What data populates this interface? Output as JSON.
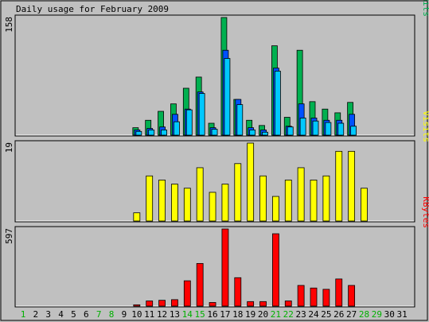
{
  "title": "Daily usage for February 2009",
  "colors": {
    "background": "#c0c0c0",
    "hits": "#00b050",
    "files": "#0050ff",
    "pages": "#00c8ff",
    "visits": "#ffff00",
    "kbytes": "#ff0000",
    "weekend_label": "#00b000",
    "weekday_label": "#000000"
  },
  "chart_data": [
    {
      "type": "bar",
      "name": "pages-files-hits",
      "ylabel_parts": [
        "Pages",
        "/",
        "Files",
        "/",
        "Hits"
      ],
      "ymax_label": "158",
      "ylim": [
        0,
        158
      ],
      "x": [
        1,
        2,
        3,
        4,
        5,
        6,
        7,
        8,
        9,
        10,
        11,
        12,
        13,
        14,
        15,
        16,
        17,
        18,
        19,
        20,
        21,
        22,
        23,
        24,
        25,
        26,
        27,
        28,
        29,
        30,
        31
      ],
      "series": [
        {
          "name": "Hits",
          "values": [
            0,
            0,
            0,
            0,
            0,
            0,
            0,
            0,
            0,
            10,
            20,
            32,
            42,
            63,
            78,
            16,
            158,
            48,
            20,
            13,
            120,
            24,
            114,
            45,
            35,
            30,
            44,
            0,
            0,
            0,
            0
          ]
        },
        {
          "name": "Files",
          "values": [
            0,
            0,
            0,
            0,
            0,
            0,
            0,
            0,
            0,
            7,
            9,
            11,
            28,
            35,
            58,
            10,
            114,
            48,
            10,
            7,
            90,
            12,
            42,
            23,
            20,
            20,
            28,
            0,
            0,
            0,
            0
          ]
        },
        {
          "name": "Pages",
          "values": [
            0,
            0,
            0,
            0,
            0,
            0,
            0,
            0,
            0,
            5,
            7,
            7,
            18,
            34,
            56,
            8,
            103,
            41,
            7,
            4,
            86,
            11,
            23,
            19,
            17,
            16,
            12,
            0,
            0,
            0,
            0
          ]
        }
      ]
    },
    {
      "type": "bar",
      "name": "visits",
      "ylabel": "Visits",
      "ymax_label": "19",
      "ylim": [
        0,
        19
      ],
      "x": [
        1,
        2,
        3,
        4,
        5,
        6,
        7,
        8,
        9,
        10,
        11,
        12,
        13,
        14,
        15,
        16,
        17,
        18,
        19,
        20,
        21,
        22,
        23,
        24,
        25,
        26,
        27,
        28,
        29,
        30,
        31
      ],
      "series": [
        {
          "name": "Visits",
          "values": [
            0,
            0,
            0,
            0,
            0,
            0,
            0,
            0,
            0,
            2,
            11,
            10,
            9,
            8,
            13,
            7,
            9,
            14,
            19,
            11,
            6,
            10,
            13,
            10,
            11,
            17,
            17,
            8,
            0,
            0,
            0
          ]
        }
      ]
    },
    {
      "type": "bar",
      "name": "kbytes",
      "ylabel": "KBytes",
      "ymax_label": "597",
      "ylim": [
        0,
        597
      ],
      "x": [
        1,
        2,
        3,
        4,
        5,
        6,
        7,
        8,
        9,
        10,
        11,
        12,
        13,
        14,
        15,
        16,
        17,
        18,
        19,
        20,
        21,
        22,
        23,
        24,
        25,
        26,
        27,
        28,
        29,
        30,
        31
      ],
      "series": [
        {
          "name": "KBytes",
          "values": [
            0,
            0,
            0,
            0,
            0,
            0,
            0,
            0,
            0,
            10,
            40,
            45,
            50,
            196,
            330,
            28,
            597,
            220,
            35,
            35,
            560,
            40,
            160,
            140,
            130,
            210,
            160,
            0,
            0,
            0,
            0
          ]
        }
      ]
    }
  ],
  "day_labels": [
    "1",
    "2",
    "3",
    "4",
    "5",
    "6",
    "7",
    "8",
    "9",
    "10",
    "11",
    "12",
    "13",
    "14",
    "15",
    "16",
    "17",
    "18",
    "19",
    "20",
    "21",
    "22",
    "23",
    "24",
    "25",
    "26",
    "27",
    "28",
    "29",
    "30",
    "31"
  ],
  "weekend_days": [
    1,
    7,
    8,
    14,
    15,
    21,
    22,
    28,
    29
  ]
}
